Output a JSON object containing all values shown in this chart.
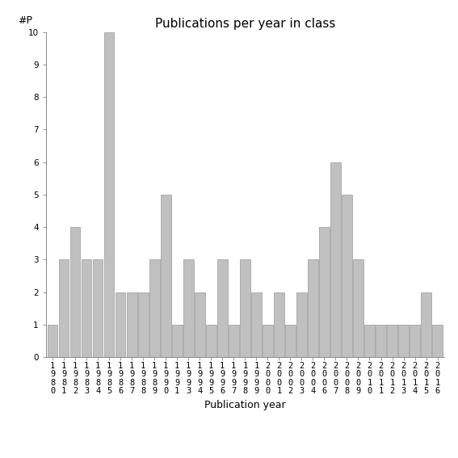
{
  "years": [
    "1980",
    "1981",
    "1982",
    "1983",
    "1984",
    "1985",
    "1986",
    "1987",
    "1988",
    "1989",
    "1990",
    "1991",
    "1993",
    "1994",
    "1995",
    "1996",
    "1997",
    "1998",
    "1999",
    "2000",
    "2001",
    "2002",
    "2003",
    "2004",
    "2006",
    "2007",
    "2008",
    "2009",
    "2010",
    "2011",
    "2012",
    "2013",
    "2014",
    "2015",
    "2016"
  ],
  "values": [
    1,
    3,
    4,
    3,
    3,
    10,
    2,
    2,
    2,
    3,
    5,
    1,
    3,
    2,
    1,
    3,
    1,
    3,
    2,
    1,
    2,
    1,
    2,
    3,
    4,
    6,
    5,
    3,
    1,
    1,
    1,
    1,
    1,
    2,
    1
  ],
  "bar_color": "#c0c0c0",
  "bar_edgecolor": "#999999",
  "title": "Publications per year in class",
  "xlabel": "Publication year",
  "ylabel": "#P",
  "ylim": [
    0,
    10
  ],
  "yticks": [
    0,
    1,
    2,
    3,
    4,
    5,
    6,
    7,
    8,
    9,
    10
  ],
  "background_color": "#ffffff",
  "title_fontsize": 11,
  "label_fontsize": 9,
  "tick_fontsize": 7.5
}
